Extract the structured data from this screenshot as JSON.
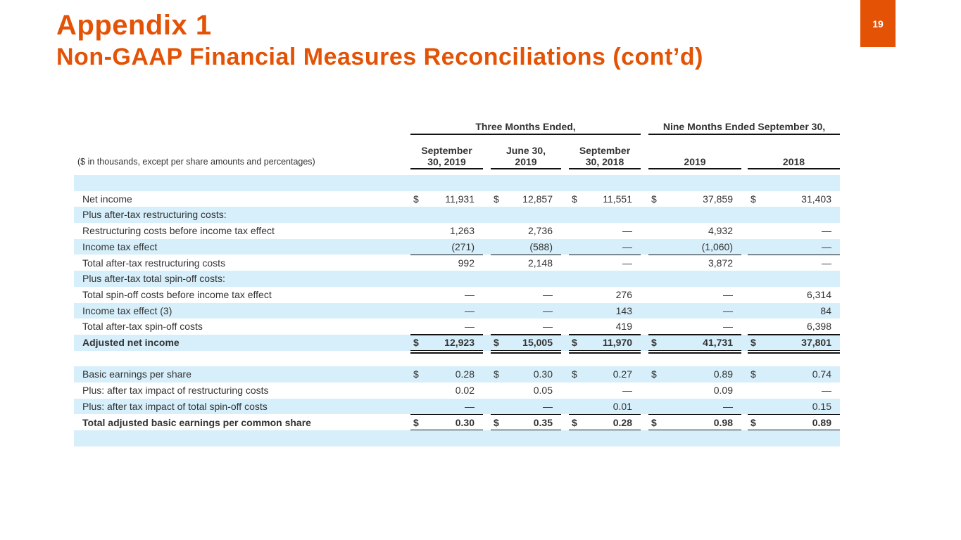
{
  "header": {
    "title": "Appendix 1",
    "subtitle": "Non-GAAP Financial Measures Reconciliations (cont’d)",
    "page_number": "19"
  },
  "table": {
    "groups": [
      "Three Months Ended,",
      "Nine Months Ended September 30,"
    ],
    "unit_note": "($ in thousands, except per share amounts and percentages)",
    "columns": [
      [
        "September",
        "30, 2019"
      ],
      [
        "June 30,",
        "2019"
      ],
      [
        "September",
        "30, 2018"
      ],
      [
        "2019"
      ],
      [
        "2018"
      ]
    ],
    "rows": [
      {
        "label": "Net income",
        "symbol": "$",
        "values": [
          "11,931",
          "12,857",
          "11,551",
          "37,859",
          "31,403"
        ]
      },
      {
        "label": "Plus after-tax restructuring costs:"
      },
      {
        "label": "Restructuring costs before income tax effect",
        "values": [
          "1,263",
          "2,736",
          "—",
          "4,932",
          "—"
        ]
      },
      {
        "label": "Income tax effect",
        "values": [
          "(271)",
          "(588)",
          "—",
          "(1,060)",
          "—"
        ]
      },
      {
        "label": "Total after-tax restructuring costs",
        "values": [
          "992",
          "2,148",
          "—",
          "3,872",
          "—"
        ]
      },
      {
        "label": "Plus after-tax total spin-off costs:"
      },
      {
        "label": "Total spin-off costs before income tax effect",
        "values": [
          "—",
          "—",
          "276",
          "—",
          "6,314"
        ]
      },
      {
        "label": "Income tax effect (3)",
        "values": [
          "—",
          "—",
          "143",
          "—",
          "84"
        ]
      },
      {
        "label": "Total after-tax spin-off costs",
        "values": [
          "—",
          "—",
          "419",
          "—",
          "6,398"
        ]
      },
      {
        "label": "Adjusted net income",
        "symbol": "$",
        "values": [
          "12,923",
          "15,005",
          "11,970",
          "41,731",
          "37,801"
        ]
      },
      {
        "label": "Basic earnings per share",
        "symbol": "$",
        "values": [
          "0.28",
          "0.30",
          "0.27",
          "0.89",
          "0.74"
        ]
      },
      {
        "label": "Plus: after tax impact of restructuring costs",
        "values": [
          "0.02",
          "0.05",
          "—",
          "0.09",
          "—"
        ]
      },
      {
        "label": "Plus: after tax impact of total spin-off costs",
        "values": [
          "—",
          "—",
          "0.01",
          "—",
          "0.15"
        ]
      },
      {
        "label": "Total adjusted basic earnings per common share",
        "symbol": "$",
        "values": [
          "0.30",
          "0.35",
          "0.28",
          "0.98",
          "0.89"
        ]
      }
    ]
  }
}
